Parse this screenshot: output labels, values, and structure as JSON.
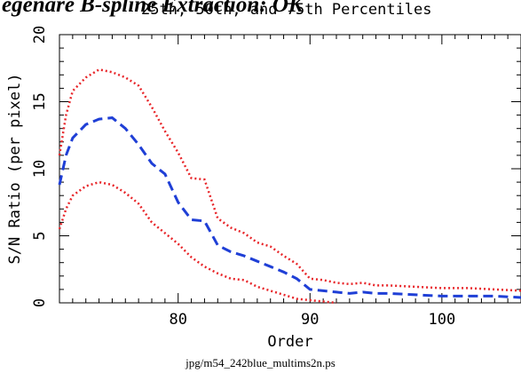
{
  "header": {
    "title": "egenare B-spline Extraction: OK"
  },
  "footer": {
    "caption": "jpg/m54_242blue_multims2n.ps"
  },
  "chart_data": {
    "type": "line",
    "title": "25th, 50th, and 75th Percentiles",
    "xlabel": "Order",
    "ylabel": "S/N Ratio (per pixel)",
    "xlim": [
      71,
      106
    ],
    "ylim": [
      0,
      20
    ],
    "x_ticks": [
      80,
      90,
      100
    ],
    "y_ticks": [
      0,
      5,
      10,
      15,
      20
    ],
    "series": [
      {
        "color": "#e8262a",
        "style": "dotted",
        "x": [
          71,
          71.5,
          72,
          73,
          74,
          75,
          76,
          77,
          78,
          79,
          80,
          81,
          82,
          83,
          84,
          85,
          86,
          87,
          88,
          89,
          90,
          91,
          92,
          93,
          94,
          95,
          96,
          98,
          100,
          102,
          104,
          106
        ],
        "values": [
          11.0,
          14.0,
          15.8,
          16.8,
          17.4,
          17.2,
          16.8,
          16.2,
          14.6,
          12.8,
          11.2,
          9.3,
          9.2,
          6.3,
          5.6,
          5.2,
          4.5,
          4.2,
          3.5,
          2.9,
          1.8,
          1.7,
          1.5,
          1.4,
          1.5,
          1.3,
          1.3,
          1.2,
          1.1,
          1.1,
          1.0,
          0.9
        ]
      },
      {
        "color": "#1f3fd6",
        "style": "dashed",
        "x": [
          71,
          71.5,
          72,
          73,
          74,
          75,
          76,
          77,
          78,
          79,
          80,
          81,
          82,
          83,
          84,
          85,
          86,
          87,
          88,
          89,
          90,
          91,
          92,
          93,
          94,
          95,
          96,
          98,
          100,
          102,
          104,
          106
        ],
        "values": [
          8.8,
          11.0,
          12.3,
          13.3,
          13.7,
          13.8,
          13.0,
          11.8,
          10.4,
          9.6,
          7.5,
          6.2,
          6.1,
          4.3,
          3.8,
          3.5,
          3.1,
          2.7,
          2.3,
          1.8,
          1.0,
          0.9,
          0.8,
          0.7,
          0.8,
          0.7,
          0.7,
          0.6,
          0.5,
          0.5,
          0.5,
          0.4
        ]
      },
      {
        "color": "#e8262a",
        "style": "dotted",
        "x": [
          71,
          71.5,
          72,
          73,
          74,
          75,
          76,
          77,
          78,
          79,
          80,
          81,
          82,
          83,
          84,
          85,
          86,
          87,
          88,
          89,
          90,
          91,
          92
        ],
        "values": [
          5.5,
          7.0,
          8.0,
          8.7,
          9.0,
          8.8,
          8.2,
          7.4,
          6.0,
          5.2,
          4.4,
          3.4,
          2.7,
          2.2,
          1.8,
          1.7,
          1.2,
          0.9,
          0.6,
          0.3,
          0.2,
          0.1,
          0.0
        ]
      }
    ]
  }
}
